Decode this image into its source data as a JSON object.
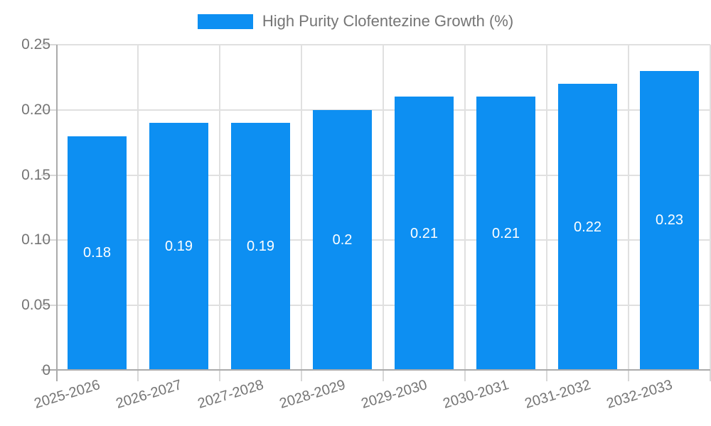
{
  "chart_data": {
    "type": "bar",
    "title": "High Purity Clofentezine Growth (%)",
    "categories": [
      "2025-2026",
      "2026-2027",
      "2027-2028",
      "2028-2029",
      "2029-2030",
      "2030-2031",
      "2031-2032",
      "2032-2033"
    ],
    "values": [
      0.18,
      0.19,
      0.19,
      0.2,
      0.21,
      0.21,
      0.22,
      0.23
    ],
    "value_labels": [
      "0.18",
      "0.19",
      "0.19",
      "0.2",
      "0.21",
      "0.21",
      "0.22",
      "0.23"
    ],
    "xlabel": "",
    "ylabel": "",
    "ylim": [
      0,
      0.25
    ],
    "ytick_values": [
      0,
      0.05,
      0.1,
      0.15,
      0.2,
      0.25
    ],
    "ytick_labels": [
      "0",
      "0.05",
      "0.10",
      "0.15",
      "0.20",
      "0.25"
    ],
    "grid": true,
    "legend_position": "top"
  },
  "colors": {
    "bar": "#0d8ff2",
    "bar_value_text": "#ffffff",
    "axis_line": "#ababab",
    "gridline": "#e0e0e0",
    "tick": "#d8d8d8",
    "axis_text": "#757575",
    "legend_text": "#757575",
    "background": "#ffffff"
  }
}
